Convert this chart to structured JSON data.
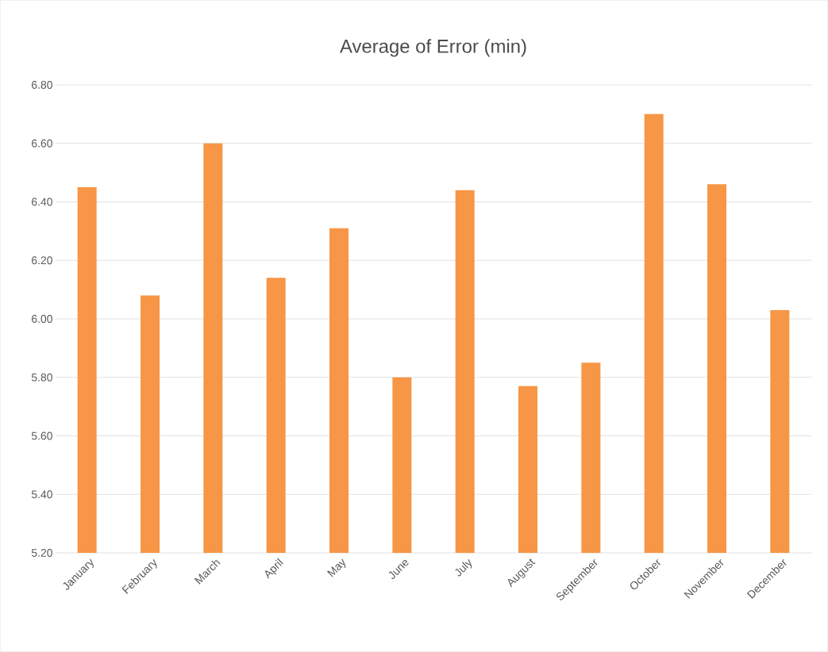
{
  "chart_data": {
    "type": "bar",
    "title": "Average of Error (min)",
    "categories": [
      "January",
      "February",
      "March",
      "April",
      "May",
      "June",
      "July",
      "August",
      "September",
      "October",
      "November",
      "December"
    ],
    "values": [
      6.45,
      6.08,
      6.6,
      6.14,
      6.31,
      5.8,
      6.44,
      5.77,
      5.85,
      6.7,
      6.46,
      6.03
    ],
    "color": "#f79646",
    "ylim": [
      5.2,
      6.8
    ],
    "yticks": [
      {
        "value": 5.2,
        "label": "5.20"
      },
      {
        "value": 5.4,
        "label": "5.40"
      },
      {
        "value": 5.6,
        "label": "5.60"
      },
      {
        "value": 5.8,
        "label": "5.80"
      },
      {
        "value": 6.0,
        "label": "6.00"
      },
      {
        "value": 6.2,
        "label": "6.20"
      },
      {
        "value": 6.4,
        "label": "6.40"
      },
      {
        "value": 6.6,
        "label": "6.60"
      },
      {
        "value": 6.8,
        "label": "6.80"
      }
    ],
    "grid": "y"
  }
}
